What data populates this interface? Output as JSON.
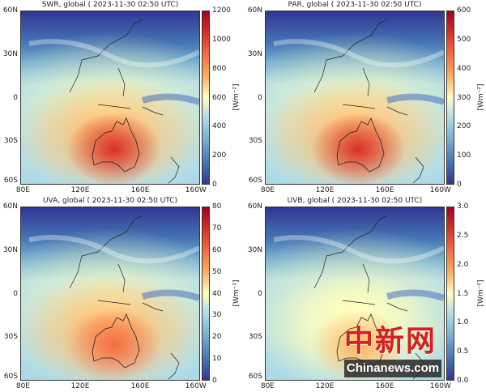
{
  "figure": {
    "lat_labels": [
      "60N",
      "30N",
      "0",
      "30S",
      "60S"
    ],
    "lon_labels": [
      "80E",
      "120E",
      "160E",
      "160W"
    ],
    "unit_label": "[Wm⁻²]",
    "colormap": [
      "#313695",
      "#4575b4",
      "#74add1",
      "#abd9e9",
      "#ffffbf",
      "#fdae61",
      "#f46d43",
      "#d73027",
      "#a50026"
    ],
    "panels": [
      {
        "title": "SWR, global ( 2023-11-30 02:50 UTC)",
        "cbar_min": 0,
        "cbar_max": 1200,
        "cbar_ticks": [
          "0",
          "200",
          "400",
          "600",
          "800",
          "1000",
          "1200"
        ],
        "intensity": 1.0
      },
      {
        "title": "PAR, global ( 2023-11-30 02:50 UTC)",
        "cbar_min": 0,
        "cbar_max": 600,
        "cbar_ticks": [
          "0",
          "100",
          "200",
          "300",
          "400",
          "500",
          "600"
        ],
        "intensity": 1.0
      },
      {
        "title": "UVA, global ( 2023-11-30 02:50 UTC)",
        "cbar_min": 0,
        "cbar_max": 80,
        "cbar_ticks": [
          "0",
          "10",
          "20",
          "30",
          "40",
          "50",
          "60",
          "70",
          "80"
        ],
        "intensity": 0.9
      },
      {
        "title": "UVB, global ( 2023-11-30 02:50 UTC)",
        "cbar_min": 0,
        "cbar_max": 3.0,
        "cbar_ticks": [
          "0.0",
          "0.5",
          "1.0",
          "1.5",
          "2.0",
          "2.5",
          "3.0"
        ],
        "intensity": 0.6
      }
    ]
  },
  "watermark": {
    "logo_cn": "中新网",
    "logo_en": "Chinanews.com"
  }
}
